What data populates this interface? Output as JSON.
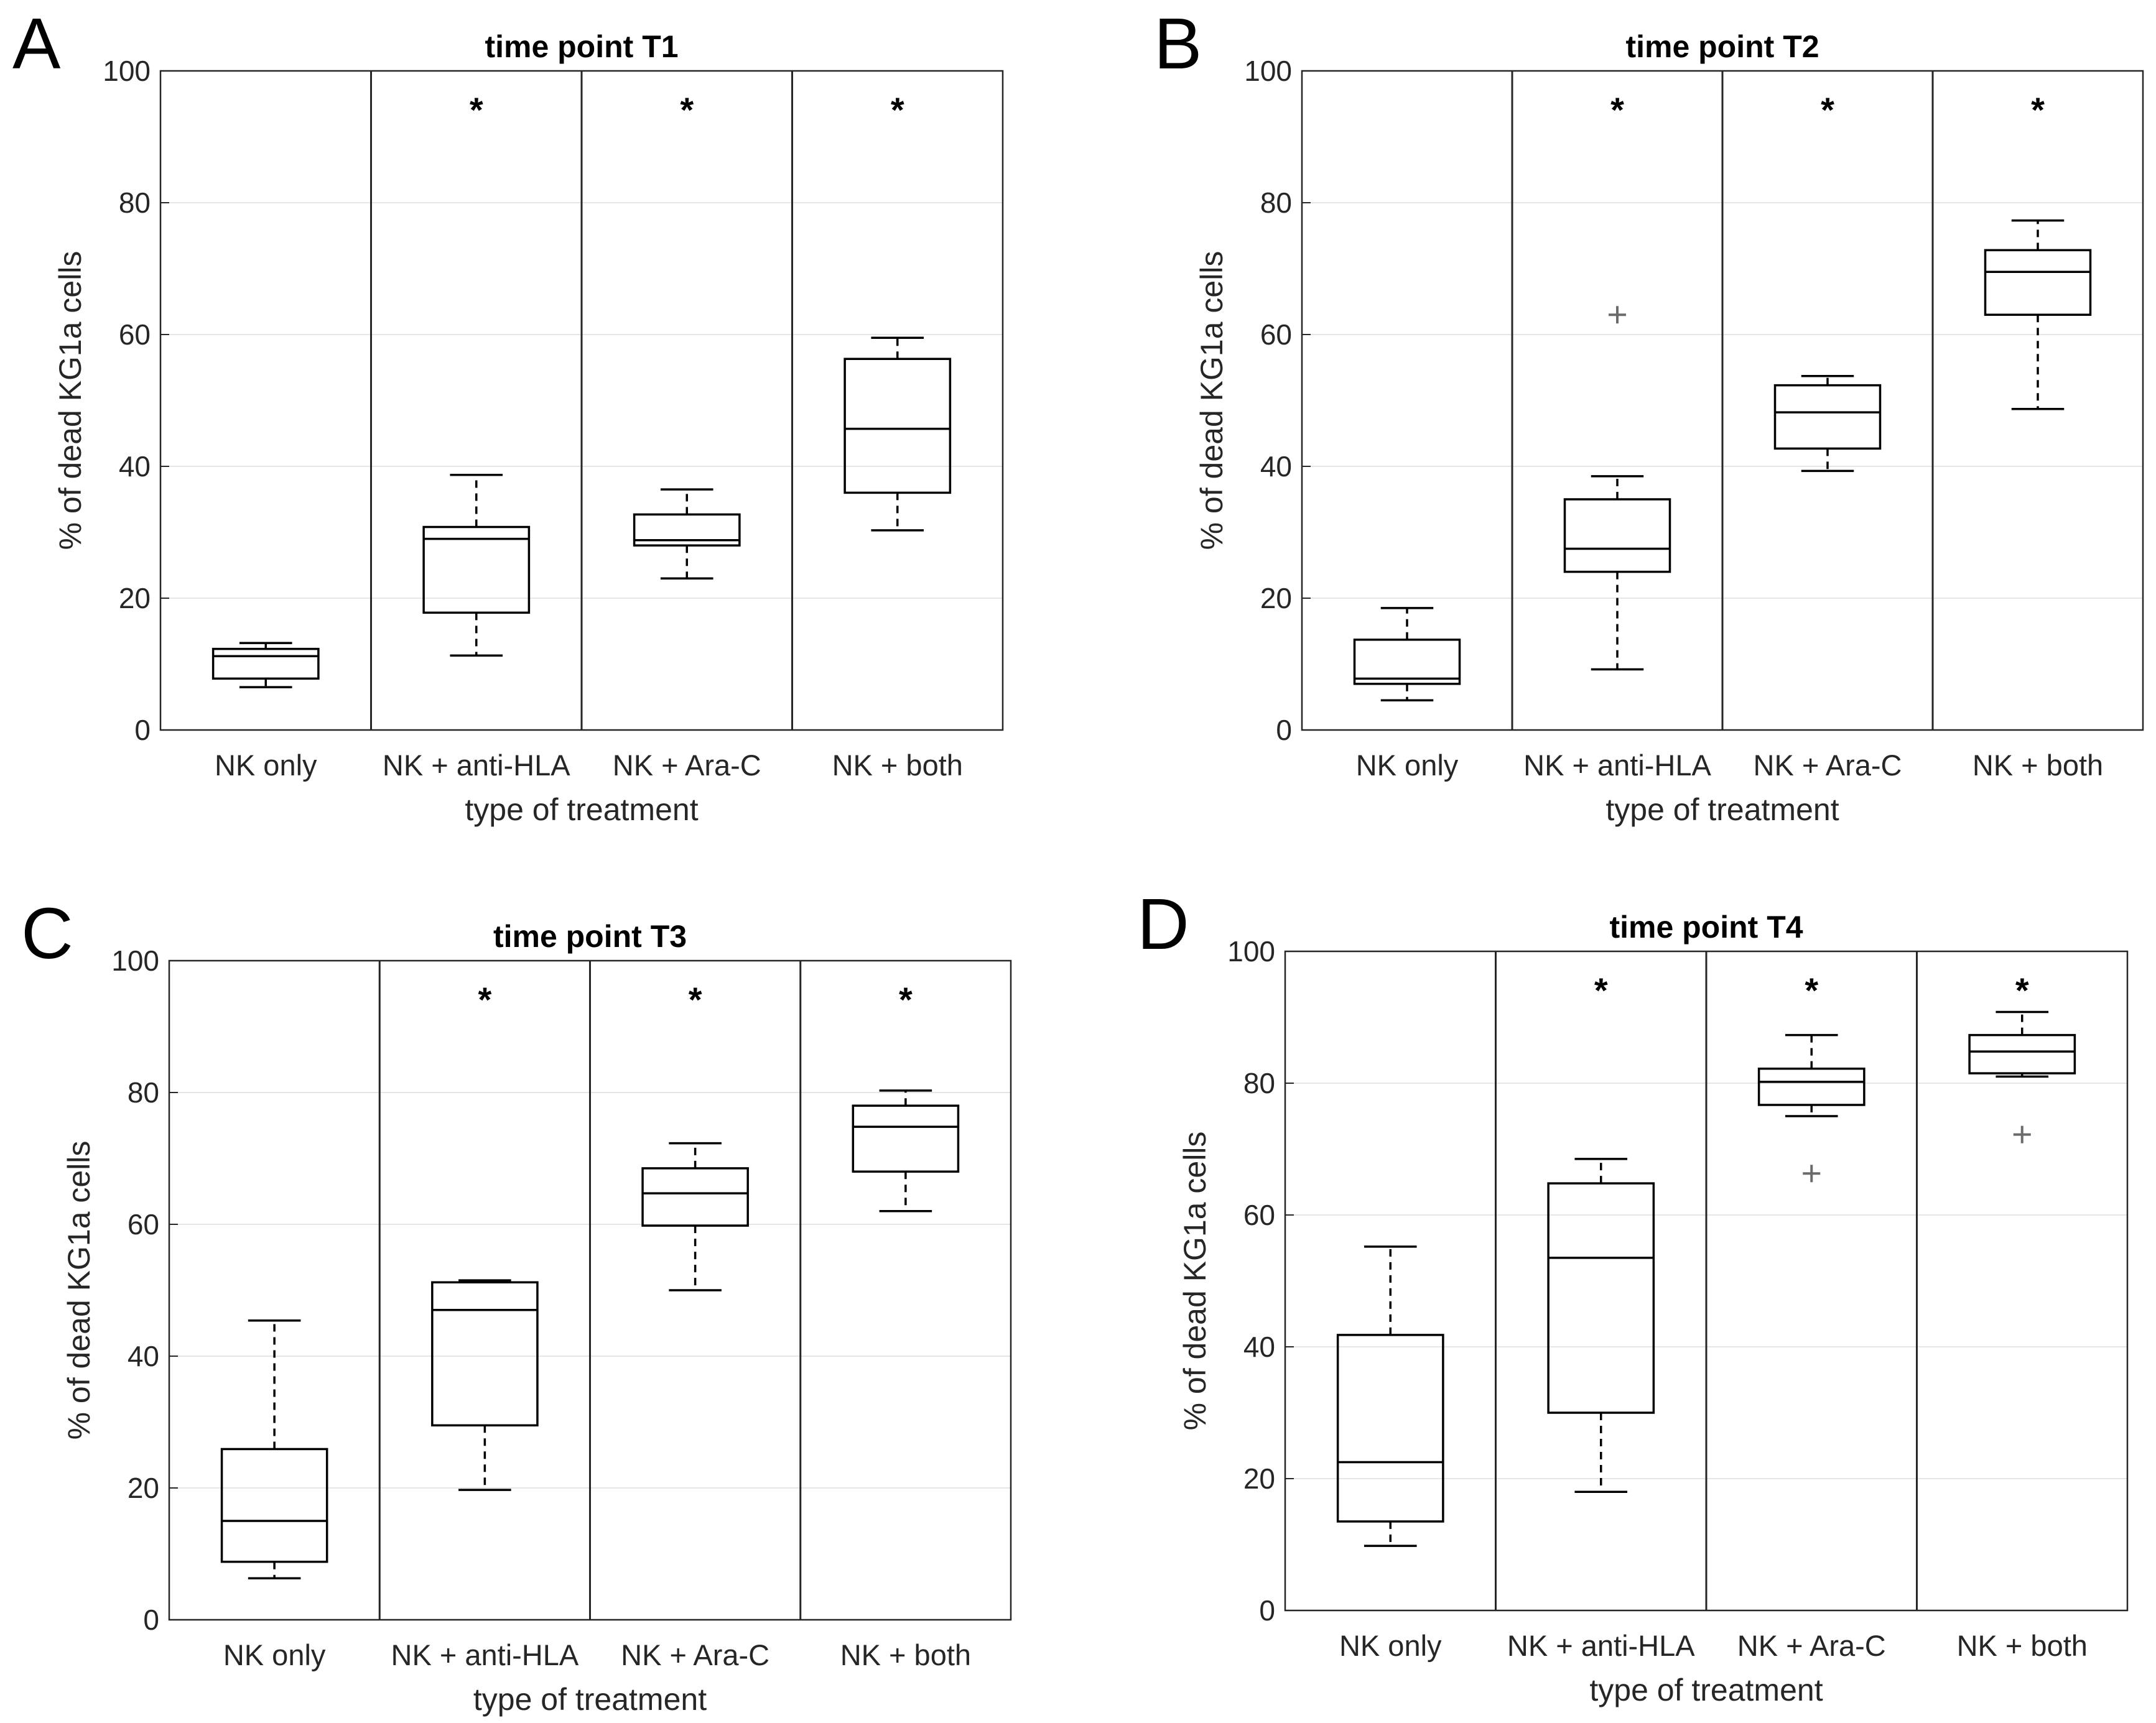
{
  "chart_data": [
    {
      "type": "box",
      "panel_label": "A",
      "title": "time point T1",
      "xlabel": "type of treatment",
      "ylabel": "% of dead KG1a cells",
      "ylim": [
        0,
        100
      ],
      "yticks": [
        0,
        20,
        40,
        60,
        80,
        100
      ],
      "grid": "horizontal",
      "categories": [
        "NK only",
        "NK + anti-HLA",
        "NK + Ara-C",
        "NK + both"
      ],
      "boxes": [
        {
          "whisker_low": 6.5,
          "q1": 7.8,
          "median": 11.2,
          "q3": 12.3,
          "whisker_high": 13.2,
          "outliers": [],
          "significance": ""
        },
        {
          "whisker_low": 11.3,
          "q1": 17.8,
          "median": 29.0,
          "q3": 30.8,
          "whisker_high": 38.7,
          "outliers": [],
          "significance": "*"
        },
        {
          "whisker_low": 23.0,
          "q1": 28.0,
          "median": 28.8,
          "q3": 32.7,
          "whisker_high": 36.5,
          "outliers": [],
          "significance": "*"
        },
        {
          "whisker_low": 30.3,
          "q1": 36.0,
          "median": 45.7,
          "q3": 56.3,
          "whisker_high": 59.5,
          "outliers": [],
          "significance": "*"
        }
      ]
    },
    {
      "type": "box",
      "panel_label": "B",
      "title": "time point T2",
      "xlabel": "type of treatment",
      "ylabel": "% of dead KG1a cells",
      "ylim": [
        0,
        100
      ],
      "yticks": [
        0,
        20,
        40,
        60,
        80,
        100
      ],
      "grid": "horizontal",
      "categories": [
        "NK only",
        "NK + anti-HLA",
        "NK + Ara-C",
        "NK + both"
      ],
      "boxes": [
        {
          "whisker_low": 4.5,
          "q1": 7.0,
          "median": 7.8,
          "q3": 13.7,
          "whisker_high": 18.5,
          "outliers": [],
          "significance": ""
        },
        {
          "whisker_low": 9.2,
          "q1": 24.0,
          "median": 27.5,
          "q3": 35.0,
          "whisker_high": 38.5,
          "outliers": [
            63.0
          ],
          "significance": "*"
        },
        {
          "whisker_low": 39.3,
          "q1": 42.7,
          "median": 48.2,
          "q3": 52.3,
          "whisker_high": 53.7,
          "outliers": [],
          "significance": "*"
        },
        {
          "whisker_low": 48.7,
          "q1": 63.0,
          "median": 69.5,
          "q3": 72.8,
          "whisker_high": 77.3,
          "outliers": [],
          "significance": "*"
        }
      ]
    },
    {
      "type": "box",
      "panel_label": "C",
      "title": "time point T3",
      "xlabel": "type of treatment",
      "ylabel": "% of dead KG1a cells",
      "ylim": [
        0,
        100
      ],
      "yticks": [
        0,
        20,
        40,
        60,
        80,
        100
      ],
      "grid": "horizontal",
      "categories": [
        "NK only",
        "NK + anti-HLA",
        "NK + Ara-C",
        "NK + both"
      ],
      "boxes": [
        {
          "whisker_low": 6.3,
          "q1": 8.8,
          "median": 15.0,
          "q3": 25.9,
          "whisker_high": 45.4,
          "outliers": [],
          "significance": ""
        },
        {
          "whisker_low": 19.7,
          "q1": 29.5,
          "median": 47.0,
          "q3": 51.2,
          "whisker_high": 51.5,
          "outliers": [],
          "significance": "*"
        },
        {
          "whisker_low": 50.0,
          "q1": 59.8,
          "median": 64.7,
          "q3": 68.5,
          "whisker_high": 72.3,
          "outliers": [],
          "significance": "*"
        },
        {
          "whisker_low": 62.0,
          "q1": 68.0,
          "median": 74.8,
          "q3": 78.0,
          "whisker_high": 80.3,
          "outliers": [],
          "significance": "*"
        }
      ]
    },
    {
      "type": "box",
      "panel_label": "D",
      "title": "time point T4",
      "xlabel": "type of treatment",
      "ylabel": "% of dead KG1a cells",
      "ylim": [
        0,
        100
      ],
      "yticks": [
        0,
        20,
        40,
        60,
        80,
        100
      ],
      "grid": "horizontal",
      "categories": [
        "NK only",
        "NK + anti-HLA",
        "NK + Ara-C",
        "NK + both"
      ],
      "boxes": [
        {
          "whisker_low": 9.8,
          "q1": 13.5,
          "median": 22.5,
          "q3": 41.8,
          "whisker_high": 55.2,
          "outliers": [],
          "significance": ""
        },
        {
          "whisker_low": 18.0,
          "q1": 30.0,
          "median": 53.5,
          "q3": 64.8,
          "whisker_high": 68.5,
          "outliers": [],
          "significance": "*"
        },
        {
          "whisker_low": 75.0,
          "q1": 76.7,
          "median": 80.2,
          "q3": 82.2,
          "whisker_high": 87.3,
          "outliers": [
            66.3
          ],
          "significance": "*"
        },
        {
          "whisker_low": 81.0,
          "q1": 81.5,
          "median": 84.8,
          "q3": 87.3,
          "whisker_high": 90.8,
          "outliers": [
            72.2
          ],
          "significance": "*"
        }
      ]
    }
  ]
}
